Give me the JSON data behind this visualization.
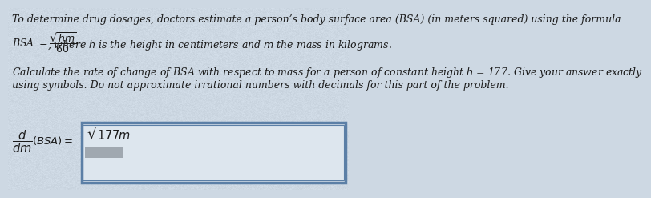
{
  "bg_color": "#cdd8e3",
  "text_color": "#1a1a1a",
  "box_bg_color": "#dde6ee",
  "box_border_color": "#5b7fa6",
  "grey_fill": "#a0a8b0",
  "line1": "To determine drug dosages, doctors estimate a person’s body surface area (BSA) (in meters squared) using the formula",
  "line2_bsa": "BSA = ",
  "line2_rest": ", where ",
  "line2_h": "h",
  "line2_mid": " is the height in centimeters and ",
  "line2_m": "m",
  "line2_end": " the mass in kilograms.",
  "line3": "Calculate the rate of change of BSA with respect to mass for a person of constant height ",
  "line3_h": "h",
  "line3_eq": " = 177. Give your answer exactly",
  "line4": "using symbols. Do not approximate irrational numbers with decimals for this part of the problem.",
  "font_size_main": 9.0,
  "font_size_answer": 9.5
}
